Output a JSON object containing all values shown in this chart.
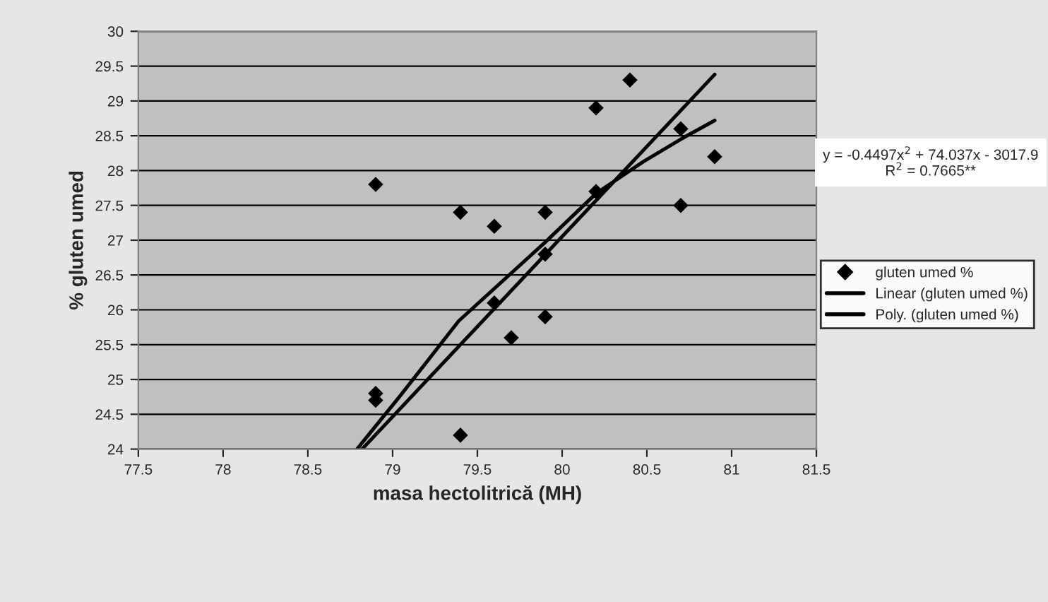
{
  "chart_data": {
    "type": "scatter",
    "xlabel": "masa hectolitrică (MH)",
    "ylabel": "% gluten umed",
    "xlim": [
      77.5,
      81.5
    ],
    "xticks": [
      77.5,
      78,
      78.5,
      79,
      79.5,
      80,
      80.5,
      81,
      81.5
    ],
    "ylim": [
      24,
      30
    ],
    "yticks": [
      24,
      24.5,
      25,
      25.5,
      26,
      26.5,
      27,
      27.5,
      28,
      28.5,
      29,
      29.5,
      30
    ],
    "grid": "y",
    "legend": "right",
    "series": [
      {
        "name": "gluten umed %",
        "color": "#000000",
        "marker": "diamond",
        "x": [
          78.9,
          78.9,
          78.9,
          79.4,
          79.4,
          79.6,
          79.6,
          79.7,
          79.9,
          79.9,
          79.9,
          80.2,
          80.2,
          80.4,
          80.7,
          80.7,
          80.9
        ],
        "values": [
          27.8,
          24.8,
          24.7,
          27.4,
          24.2,
          27.2,
          26.1,
          25.6,
          27.4,
          26.8,
          25.9,
          28.9,
          27.7,
          29.3,
          28.6,
          27.5,
          28.2
        ]
      },
      {
        "name": "Linear (gluten umed %)",
        "type": "line",
        "color": "#000000",
        "x": [
          78.82,
          80.9
        ],
        "values": [
          24,
          29.38
        ]
      },
      {
        "name": "Poly. (gluten umed %)",
        "type": "line",
        "color": "#000000",
        "x": [
          78.79,
          79.04,
          79.39,
          79.9,
          80.2,
          80.48,
          80.7,
          80.9
        ],
        "values": [
          24,
          24.75,
          25.84,
          26.97,
          27.67,
          28.13,
          28.45,
          28.72
        ]
      }
    ],
    "annotations": [
      "y = -0.4497x$^{2}$ + 74.037x - 3017.9",
      "R$^{2}$ = 0.7665**"
    ]
  }
}
